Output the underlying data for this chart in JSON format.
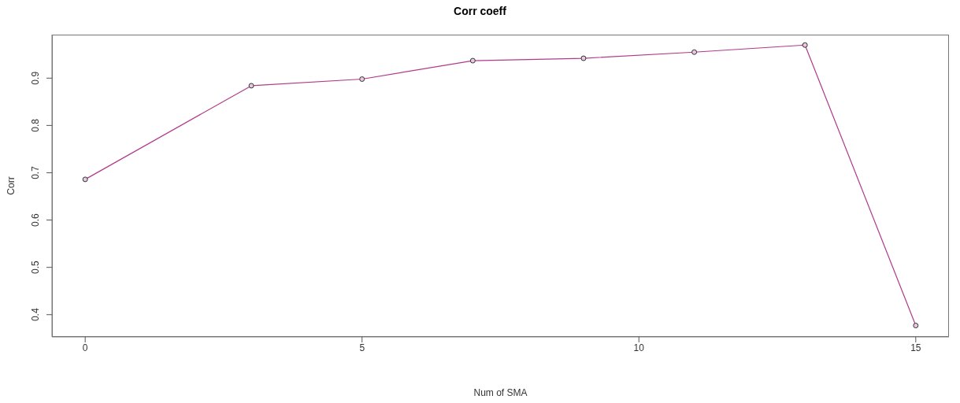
{
  "chart_data": {
    "type": "line",
    "title": "Corr coeff",
    "xlabel": "Num of SMA",
    "ylabel": "Corr",
    "x": [
      0,
      3,
      5,
      7,
      9,
      11,
      13,
      15
    ],
    "series": [
      {
        "color": "#b03a8a",
        "values": [
          0.686,
          0.884,
          0.898,
          0.937,
          0.942,
          0.955,
          0.97,
          0.377
        ]
      }
    ],
    "xlim": [
      -0.6,
      15.6
    ],
    "xticks": [
      0,
      5,
      10,
      15
    ],
    "ylim": [
      0.353,
      0.992
    ],
    "yticks": [
      0.4,
      0.5,
      0.6,
      0.7,
      0.8,
      0.9
    ],
    "marker": "circle",
    "line_style": "solid",
    "grid": false,
    "legend": false
  }
}
